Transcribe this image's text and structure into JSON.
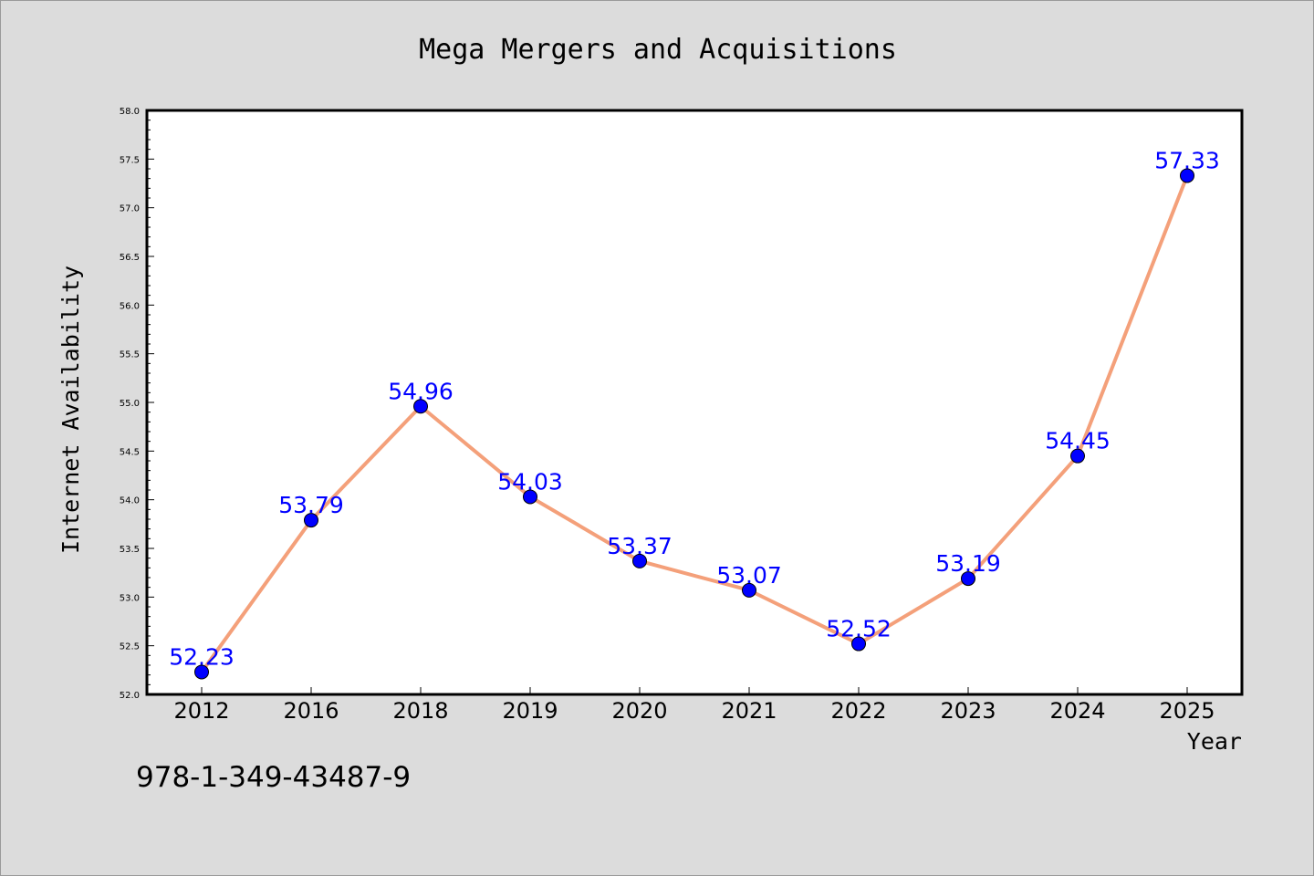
{
  "chart_data": {
    "type": "line",
    "title": "Mega Mergers and Acquisitions",
    "xlabel": "Year",
    "ylabel": "Internet Availability",
    "categories": [
      "2012",
      "2016",
      "2018",
      "2019",
      "2020",
      "2021",
      "2022",
      "2023",
      "2024",
      "2025"
    ],
    "series": [
      {
        "values": [
          52.23,
          53.79,
          54.96,
          54.03,
          53.37,
          53.07,
          52.52,
          53.19,
          54.45,
          57.33
        ],
        "data_labels": [
          "52.23",
          "53.79",
          "54.96",
          "54.03",
          "53.37",
          "53.07",
          "52.52",
          "53.19",
          "54.45",
          "57.33"
        ],
        "line_color": "#f4a07a",
        "marker_color": "#0000ff"
      }
    ],
    "ylim": [
      52.0,
      58.0
    ],
    "yticks": [
      "52.0",
      "52.5",
      "53.0",
      "53.5",
      "54.0",
      "54.5",
      "55.0",
      "55.5",
      "56.0",
      "56.5",
      "57.0",
      "57.5",
      "58.0"
    ],
    "grid": false,
    "legend": "none"
  },
  "footnote": "978-1-349-43487-9",
  "colors": {
    "figure_background": "#dcdcdc",
    "plot_background": "#ffffff",
    "label_color": "#0000ff"
  }
}
